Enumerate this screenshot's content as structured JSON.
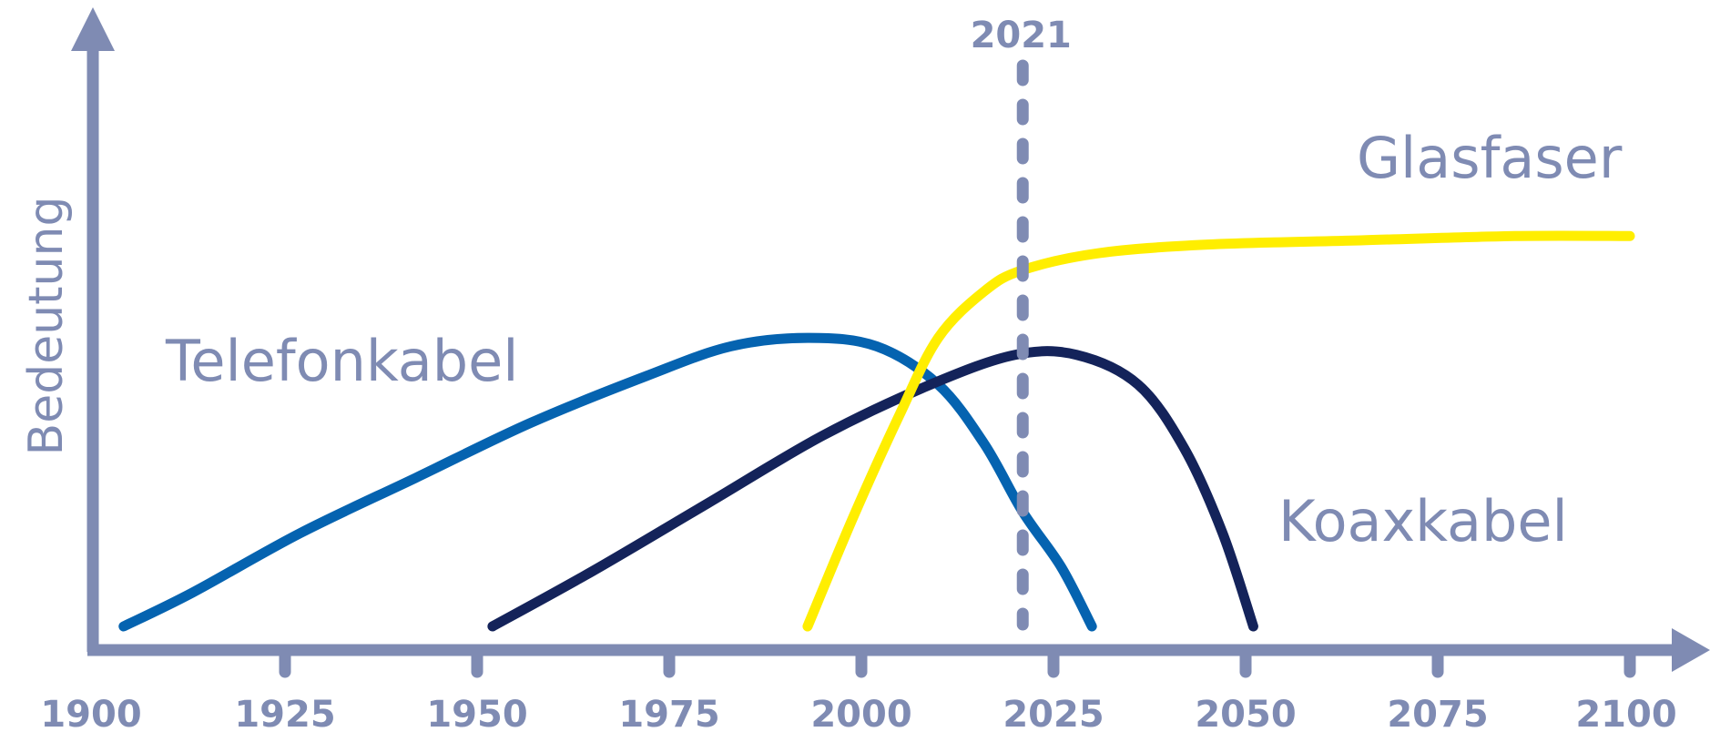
{
  "chart_data": {
    "type": "line",
    "title": "",
    "xlabel": "",
    "ylabel": "Bedeutung",
    "xlim": [
      1900,
      2100
    ],
    "ylim": [
      0,
      100
    ],
    "x_ticks": [
      "1900",
      "1925",
      "1950",
      "1975",
      "2000",
      "2025",
      "2050",
      "2075",
      "2100"
    ],
    "y_ticks_shown": false,
    "grid": false,
    "legend": "none (series labeled directly on chart)",
    "marker": {
      "label": "2021",
      "x": 2021,
      "style": "dashed vertical line"
    },
    "colors": {
      "axis": "#7f8bb3",
      "Telefonkabel": "#0563b0",
      "Koaxkabel": "#14235a",
      "Glasfaser": "#ffee00"
    },
    "series": [
      {
        "name": "Telefonkabel",
        "x": [
          1904,
          1913,
          1927,
          1942,
          1957,
          1972,
          1983,
          1993,
          2002,
          2010,
          2016,
          2021,
          2026,
          2030
        ],
        "y": [
          0,
          8,
          22,
          35,
          48,
          59,
          66,
          68,
          66,
          57,
          43,
          27,
          14,
          0
        ]
      },
      {
        "name": "Koaxkabel",
        "x": [
          1952,
          1965,
          1980,
          1995,
          2009,
          2020,
          2028,
          2036,
          2042,
          2047,
          2051
        ],
        "y": [
          0,
          13,
          29,
          45,
          57,
          64,
          64,
          57,
          42,
          22,
          0
        ]
      },
      {
        "name": "Glasfaser",
        "x": [
          1993,
          1999,
          2005,
          2010,
          2016,
          2021,
          2031,
          2045,
          2065,
          2085,
          2100
        ],
        "y": [
          0,
          26,
          50,
          68,
          79,
          84,
          88,
          90,
          91,
          92,
          92
        ]
      }
    ]
  }
}
